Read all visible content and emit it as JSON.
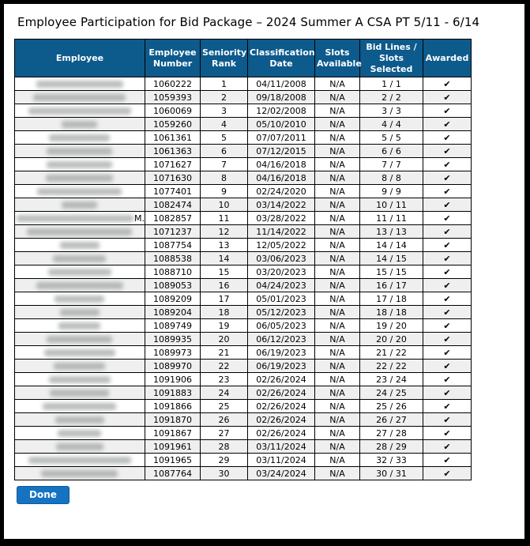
{
  "page": {
    "title": "Employee Participation for Bid Package – 2024 Summer A CSA PT 5/11 - 6/14"
  },
  "colors": {
    "header_bg": "#0d5a8c",
    "stripe": "#efefef",
    "check_green": "#2e9b2e",
    "button_blue": "#1673c2"
  },
  "table": {
    "headers": [
      "Employee",
      "Employee Number",
      "Seniority Rank",
      "Classification Date",
      "Slots Available",
      "Bid Lines / Slots Selected",
      "Awarded"
    ],
    "rows": [
      {
        "name_redacted": true,
        "name_blur_width": 110,
        "name_suffix": "",
        "employee_number": "1060222",
        "seniority_rank": "1",
        "classification_date": "04/11/2008",
        "slots_available": "N/A",
        "bid_lines_slots_selected": "1 / 1",
        "awarded": "✔"
      },
      {
        "name_redacted": true,
        "name_blur_width": 117,
        "name_suffix": "",
        "employee_number": "1059393",
        "seniority_rank": "2",
        "classification_date": "09/18/2008",
        "slots_available": "N/A",
        "bid_lines_slots_selected": "2 / 2",
        "awarded": "✔"
      },
      {
        "name_redacted": true,
        "name_blur_width": 130,
        "name_suffix": "",
        "employee_number": "1060069",
        "seniority_rank": "3",
        "classification_date": "12/02/2008",
        "slots_available": "N/A",
        "bid_lines_slots_selected": "3 / 3",
        "awarded": "✔"
      },
      {
        "name_redacted": true,
        "name_blur_width": 45,
        "name_suffix": "",
        "employee_number": "1059260",
        "seniority_rank": "4",
        "classification_date": "05/10/2010",
        "slots_available": "N/A",
        "bid_lines_slots_selected": "4 / 4",
        "awarded": "✔"
      },
      {
        "name_redacted": true,
        "name_blur_width": 77,
        "name_suffix": "",
        "employee_number": "1061361",
        "seniority_rank": "5",
        "classification_date": "07/07/2011",
        "slots_available": "N/A",
        "bid_lines_slots_selected": "5 / 5",
        "awarded": "✔"
      },
      {
        "name_redacted": true,
        "name_blur_width": 83,
        "name_suffix": "",
        "employee_number": "1061363",
        "seniority_rank": "6",
        "classification_date": "07/12/2015",
        "slots_available": "N/A",
        "bid_lines_slots_selected": "6 / 6",
        "awarded": "✔"
      },
      {
        "name_redacted": true,
        "name_blur_width": 83,
        "name_suffix": "",
        "employee_number": "1071627",
        "seniority_rank": "7",
        "classification_date": "04/16/2018",
        "slots_available": "N/A",
        "bid_lines_slots_selected": "7 / 7",
        "awarded": "✔"
      },
      {
        "name_redacted": true,
        "name_blur_width": 85,
        "name_suffix": "",
        "employee_number": "1071630",
        "seniority_rank": "8",
        "classification_date": "04/16/2018",
        "slots_available": "N/A",
        "bid_lines_slots_selected": "8 / 8",
        "awarded": "✔"
      },
      {
        "name_redacted": true,
        "name_blur_width": 107,
        "name_suffix": "",
        "employee_number": "1077401",
        "seniority_rank": "9",
        "classification_date": "02/24/2020",
        "slots_available": "N/A",
        "bid_lines_slots_selected": "9 / 9",
        "awarded": "✔"
      },
      {
        "name_redacted": true,
        "name_blur_width": 45,
        "name_suffix": "",
        "employee_number": "1082474",
        "seniority_rank": "10",
        "classification_date": "03/14/2022",
        "slots_available": "N/A",
        "bid_lines_slots_selected": "10 / 11",
        "awarded": "✔"
      },
      {
        "name_redacted": true,
        "name_blur_width": 148,
        "name_suffix": "M.",
        "employee_number": "1082857",
        "seniority_rank": "11",
        "classification_date": "03/28/2022",
        "slots_available": "N/A",
        "bid_lines_slots_selected": "11 / 11",
        "awarded": "✔"
      },
      {
        "name_redacted": true,
        "name_blur_width": 133,
        "name_suffix": "",
        "employee_number": "1071237",
        "seniority_rank": "12",
        "classification_date": "11/14/2022",
        "slots_available": "N/A",
        "bid_lines_slots_selected": "13 / 13",
        "awarded": "✔"
      },
      {
        "name_redacted": true,
        "name_blur_width": 50,
        "name_suffix": "",
        "employee_number": "1087754",
        "seniority_rank": "13",
        "classification_date": "12/05/2022",
        "slots_available": "N/A",
        "bid_lines_slots_selected": "14 / 14",
        "awarded": "✔"
      },
      {
        "name_redacted": true,
        "name_blur_width": 67,
        "name_suffix": "",
        "employee_number": "1088538",
        "seniority_rank": "14",
        "classification_date": "03/06/2023",
        "slots_available": "N/A",
        "bid_lines_slots_selected": "14 / 15",
        "awarded": "✔"
      },
      {
        "name_redacted": true,
        "name_blur_width": 80,
        "name_suffix": "",
        "employee_number": "1088710",
        "seniority_rank": "15",
        "classification_date": "03/20/2023",
        "slots_available": "N/A",
        "bid_lines_slots_selected": "15 / 15",
        "awarded": "✔"
      },
      {
        "name_redacted": true,
        "name_blur_width": 110,
        "name_suffix": "",
        "employee_number": "1089053",
        "seniority_rank": "16",
        "classification_date": "04/24/2023",
        "slots_available": "N/A",
        "bid_lines_slots_selected": "16 / 17",
        "awarded": "✔"
      },
      {
        "name_redacted": true,
        "name_blur_width": 63,
        "name_suffix": "",
        "employee_number": "1089209",
        "seniority_rank": "17",
        "classification_date": "05/01/2023",
        "slots_available": "N/A",
        "bid_lines_slots_selected": "17 / 18",
        "awarded": "✔"
      },
      {
        "name_redacted": true,
        "name_blur_width": 50,
        "name_suffix": "",
        "employee_number": "1089204",
        "seniority_rank": "18",
        "classification_date": "05/12/2023",
        "slots_available": "N/A",
        "bid_lines_slots_selected": "18 / 18",
        "awarded": "✔"
      },
      {
        "name_redacted": true,
        "name_blur_width": 53,
        "name_suffix": "",
        "employee_number": "1089749",
        "seniority_rank": "19",
        "classification_date": "06/05/2023",
        "slots_available": "N/A",
        "bid_lines_slots_selected": "19 / 20",
        "awarded": "✔"
      },
      {
        "name_redacted": true,
        "name_blur_width": 83,
        "name_suffix": "",
        "employee_number": "1089935",
        "seniority_rank": "20",
        "classification_date": "06/12/2023",
        "slots_available": "N/A",
        "bid_lines_slots_selected": "20 / 20",
        "awarded": "✔"
      },
      {
        "name_redacted": true,
        "name_blur_width": 90,
        "name_suffix": "",
        "employee_number": "1089973",
        "seniority_rank": "21",
        "classification_date": "06/19/2023",
        "slots_available": "N/A",
        "bid_lines_slots_selected": "21 / 22",
        "awarded": "✔"
      },
      {
        "name_redacted": true,
        "name_blur_width": 65,
        "name_suffix": "",
        "employee_number": "1089970",
        "seniority_rank": "22",
        "classification_date": "06/19/2023",
        "slots_available": "N/A",
        "bid_lines_slots_selected": "22 / 22",
        "awarded": "✔"
      },
      {
        "name_redacted": true,
        "name_blur_width": 78,
        "name_suffix": "",
        "employee_number": "1091906",
        "seniority_rank": "23",
        "classification_date": "02/26/2024",
        "slots_available": "N/A",
        "bid_lines_slots_selected": "23 / 24",
        "awarded": "✔"
      },
      {
        "name_redacted": true,
        "name_blur_width": 75,
        "name_suffix": "",
        "employee_number": "1091883",
        "seniority_rank": "24",
        "classification_date": "02/26/2024",
        "slots_available": "N/A",
        "bid_lines_slots_selected": "24 / 25",
        "awarded": "✔"
      },
      {
        "name_redacted": true,
        "name_blur_width": 93,
        "name_suffix": "",
        "employee_number": "1091866",
        "seniority_rank": "25",
        "classification_date": "02/26/2024",
        "slots_available": "N/A",
        "bid_lines_slots_selected": "25 / 26",
        "awarded": "✔"
      },
      {
        "name_redacted": true,
        "name_blur_width": 62,
        "name_suffix": "",
        "employee_number": "1091870",
        "seniority_rank": "26",
        "classification_date": "02/26/2024",
        "slots_available": "N/A",
        "bid_lines_slots_selected": "26 / 27",
        "awarded": "✔"
      },
      {
        "name_redacted": true,
        "name_blur_width": 55,
        "name_suffix": "",
        "employee_number": "1091867",
        "seniority_rank": "27",
        "classification_date": "02/26/2024",
        "slots_available": "N/A",
        "bid_lines_slots_selected": "27 / 28",
        "awarded": "✔"
      },
      {
        "name_redacted": true,
        "name_blur_width": 60,
        "name_suffix": "",
        "employee_number": "1091961",
        "seniority_rank": "28",
        "classification_date": "03/11/2024",
        "slots_available": "N/A",
        "bid_lines_slots_selected": "28 / 29",
        "awarded": "✔"
      },
      {
        "name_redacted": true,
        "name_blur_width": 130,
        "name_suffix": "",
        "employee_number": "1091965",
        "seniority_rank": "29",
        "classification_date": "03/11/2024",
        "slots_available": "N/A",
        "bid_lines_slots_selected": "32 / 33",
        "awarded": "✔"
      },
      {
        "name_redacted": true,
        "name_blur_width": 97,
        "name_suffix": "",
        "employee_number": "1087764",
        "seniority_rank": "30",
        "classification_date": "03/24/2024",
        "slots_available": "N/A",
        "bid_lines_slots_selected": "30 / 31",
        "awarded": "✔"
      }
    ]
  },
  "footer": {
    "done_label": "Done"
  }
}
